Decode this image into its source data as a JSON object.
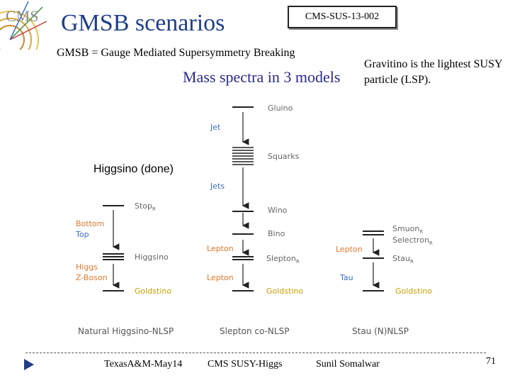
{
  "header": {
    "title": "GMSB scenarios",
    "reference": "CMS-SUS-13-002",
    "subtitle": "GMSB = Gauge Mediated Supersymmetry Breaking",
    "mass_heading": "Mass spectra in 3 models",
    "gravitino_note": "Gravitino is the lightest SUSY particle (LSP).",
    "logo_text": "CMS"
  },
  "higgsino_note": "Higgsino (done)",
  "diagram": {
    "center": {
      "gluino": "Gluino",
      "jet": "Jet",
      "squarks": "Squarks",
      "jets": "Jets",
      "wino": "Wino",
      "bino": "Bino",
      "lepton1": "Lepton",
      "slepton": "Slepton",
      "slepton_sub": "R",
      "lepton2": "Lepton",
      "goldstino": "Goldstino",
      "caption": "Slepton co-NLSP"
    },
    "left": {
      "stop": "Stop",
      "stop_sub": "R",
      "bottom": "Bottom",
      "top": "Top",
      "higgsino": "Higgsino",
      "higgs": "Higgs",
      "zboson": "Z-Boson",
      "goldstino": "Goldstino",
      "caption": "Natural Higgsino-NLSP"
    },
    "right": {
      "smuon": "Smuon",
      "smuon_sub": "R",
      "selectron": "Selectron",
      "selectron_sub": "R",
      "lepton": "Lepton",
      "stau": "Stau",
      "stau_sub": "R",
      "tau": "Tau",
      "goldstino": "Goldstino",
      "caption": "Stau (N)NLSP"
    },
    "colors": {
      "label": "#666666",
      "blue": "#3a6fc4",
      "orange": "#e07a2c",
      "gold": "#c8a000",
      "caption": "#555555"
    }
  },
  "footer": {
    "left": "TexasA&M-May14",
    "center": "CMS SUSY-Higgs",
    "right": "Sunil Somalwar",
    "page": "71"
  }
}
